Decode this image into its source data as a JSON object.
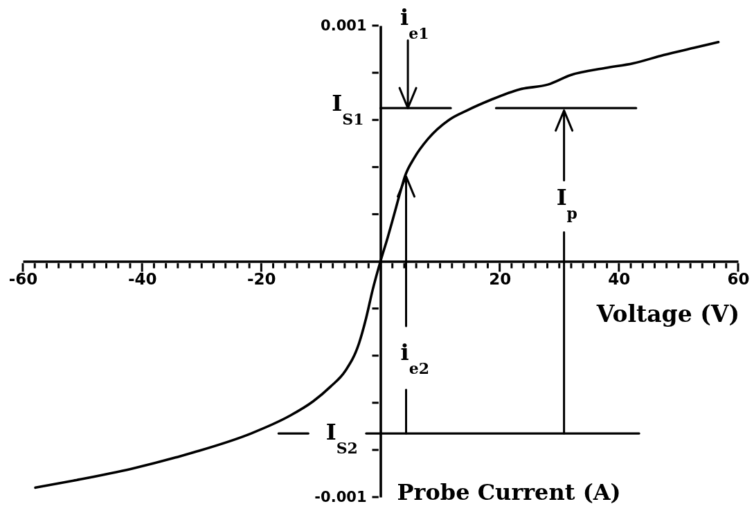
{
  "chart_data": {
    "type": "line",
    "xlabel": "Voltage (V)",
    "ylabel": "Probe Current (A)",
    "xlim": [
      -60,
      60
    ],
    "ylim": [
      -0.001,
      0.001
    ],
    "xticks": [
      -60,
      {
        "value": -58,
        "label": null
      },
      {
        "value": -56,
        "label": null
      },
      {
        "value": -54,
        "label": null
      },
      {
        "value": -52,
        "label": null
      },
      {
        "value": -50,
        "label": null
      },
      {
        "value": -48,
        "label": null
      },
      {
        "value": -46,
        "label": null
      },
      {
        "value": -44,
        "label": null
      },
      {
        "value": -42,
        "label": null
      },
      -40,
      {
        "value": -38,
        "label": null
      },
      {
        "value": -36,
        "label": null
      },
      {
        "value": -34,
        "label": null
      },
      {
        "value": -32,
        "label": null
      },
      {
        "value": -30,
        "label": null
      },
      {
        "value": -28,
        "label": null
      },
      {
        "value": -26,
        "label": null
      },
      {
        "value": -24,
        "label": null
      },
      {
        "value": -22,
        "label": null
      },
      -20,
      {
        "value": -18,
        "label": null
      },
      {
        "value": -16,
        "label": null
      },
      {
        "value": -14,
        "label": null
      },
      {
        "value": -12,
        "label": null
      },
      {
        "value": -10,
        "label": null
      },
      {
        "value": -8,
        "label": null
      },
      {
        "value": -6,
        "label": null
      },
      {
        "value": -4,
        "label": null
      },
      {
        "value": -2,
        "label": null
      },
      {
        "value": 2,
        "label": null
      },
      {
        "value": 4,
        "label": null
      },
      {
        "value": 6,
        "label": null
      },
      {
        "value": 8,
        "label": null
      },
      {
        "value": 10,
        "label": null
      },
      {
        "value": 12,
        "label": null
      },
      {
        "value": 14,
        "label": null
      },
      {
        "value": 16,
        "label": null
      },
      {
        "value": 18,
        "label": null
      },
      20,
      {
        "value": 22,
        "label": null
      },
      {
        "value": 24,
        "label": null
      },
      {
        "value": 26,
        "label": null
      },
      {
        "value": 28,
        "label": null
      },
      {
        "value": 30,
        "label": null
      },
      {
        "value": 32,
        "label": null
      },
      {
        "value": 34,
        "label": null
      },
      {
        "value": 36,
        "label": null
      },
      {
        "value": 38,
        "label": null
      },
      40,
      {
        "value": 42,
        "label": null
      },
      {
        "value": 44,
        "label": null
      },
      {
        "value": 46,
        "label": null
      },
      {
        "value": 48,
        "label": null
      },
      {
        "value": 50,
        "label": null
      },
      {
        "value": 52,
        "label": null
      },
      {
        "value": 54,
        "label": null
      },
      {
        "value": 56,
        "label": null
      },
      {
        "value": 58,
        "label": null
      },
      60
    ],
    "yticks": [
      -0.001,
      {
        "value": -0.0008,
        "label": null
      },
      {
        "value": -0.0006,
        "label": null
      },
      {
        "value": -0.0004,
        "label": null
      },
      {
        "value": -0.0002,
        "label": null
      },
      {
        "value": 0.0002,
        "label": null
      },
      {
        "value": 0.0004,
        "label": null
      },
      {
        "value": 0.0006,
        "label": null
      },
      {
        "value": 0.0008,
        "label": null
      },
      0.001
    ],
    "series": [
      {
        "color": "#000000",
        "x": [
          -57.9,
          -51.5,
          -41.8,
          -31.3,
          -21.7,
          -15.2,
          -11.3,
          -8.4,
          -5.9,
          -3.6,
          -2.4,
          -1.3,
          0,
          1.2,
          2.2,
          3.4,
          4.1,
          5.7,
          8.0,
          11.5,
          14.5,
          18.5,
          23.4,
          28.1,
          31.9,
          37.7,
          42.4,
          47.5,
          52.5,
          56.7
        ],
        "values": [
          -0.00096,
          -0.00093,
          -0.00088,
          -0.00081,
          -0.00073,
          -0.000655,
          -0.000594,
          -0.000532,
          -0.000465,
          -0.000348,
          -0.00024,
          -0.00012,
          0,
          0.0001,
          0.00019,
          0.0003,
          0.00036,
          0.00044,
          0.00052,
          0.0006,
          0.00064,
          0.000685,
          0.00073,
          0.00075,
          0.00079,
          0.00082,
          0.00084,
          0.000875,
          0.000905,
          0.00093
        ]
      },
      {
        "color": "#000000",
        "x": [
          0,
          11.8,
          15.6,
          19.4,
          42.9
        ],
        "values": [
          0.00065,
          0.00065,
          null,
          0.00065,
          0.00065
        ]
      },
      {
        "color": "#000000",
        "x": [
          -17.1,
          -12.1,
          -7.3,
          -2.4,
          43.4
        ],
        "values": [
          -0.00073,
          -0.00073,
          null,
          -0.00073,
          -0.00073
        ]
      }
    ],
    "annotations": [
      {
        "text": "I$_{S1}$",
        "x": 0,
        "y": 0.00065
      },
      {
        "text": "I$_{S2}$",
        "x": -2.4,
        "y": -0.00073
      },
      {
        "text": "i$_{e1}$",
        "x": 4.6,
        "y": 0.00065
      },
      {
        "text": "i$_{e2}$",
        "x": 4.3,
        "y": 0.00036
      },
      {
        "text": "I$_{p}$",
        "x": 30.8,
        "y": 0.00064
      }
    ]
  }
}
